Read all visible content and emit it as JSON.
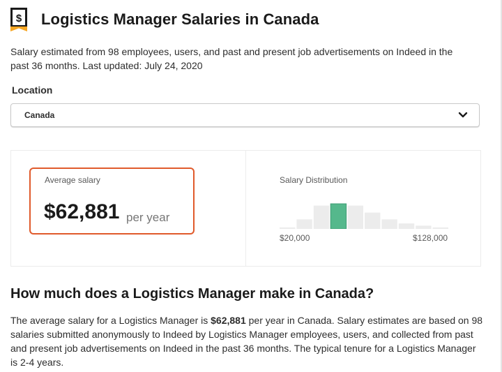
{
  "header": {
    "title": "Logistics Manager Salaries in Canada",
    "icon": "salary-ribbon-icon"
  },
  "subtitle": "Salary estimated from 98 employees, users, and past and present job advertisements on Indeed in the past 36 months. Last updated: July 24, 2020",
  "location": {
    "label": "Location",
    "value": "Canada",
    "icon": "chevron-down-icon"
  },
  "average": {
    "label": "Average salary",
    "amount": "$62,881",
    "period": "per year",
    "highlight_color": "#e05a2b"
  },
  "distribution": {
    "label": "Salary Distribution",
    "min_label": "$20,000",
    "max_label": "$128,000",
    "bar_color": "#ececec",
    "highlight_color": "#55b88c",
    "highlight_index": 3,
    "bars": [
      0.06,
      0.38,
      0.93,
      1.0,
      0.93,
      0.65,
      0.38,
      0.22,
      0.13,
      0.06
    ]
  },
  "section": {
    "heading": "How much does a Logistics Manager make in Canada?",
    "body_before": "The average salary for a Logistics Manager is ",
    "body_amount": "$62,881",
    "body_after": " per year in Canada. Salary estimates are based on 98 salaries submitted anonymously to Indeed by Logistics Manager employees, users, and collected from past and present job advertisements on Indeed in the past 36 months. The typical tenure for a Logistics Manager is 2-4 years."
  }
}
